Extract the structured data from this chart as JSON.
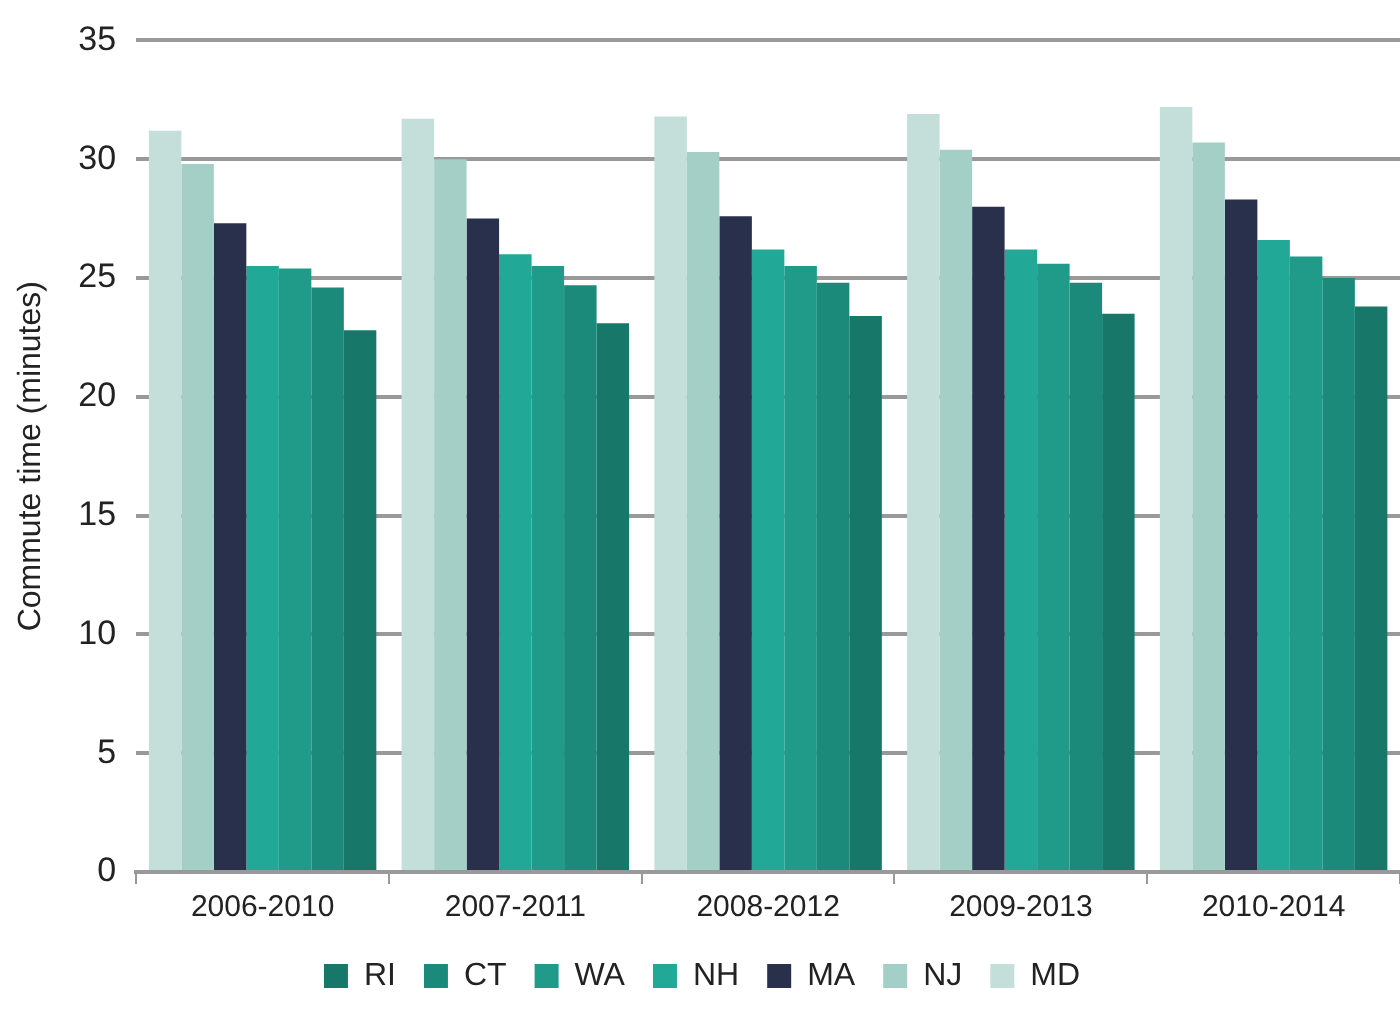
{
  "chart_data": {
    "type": "bar",
    "ylabel": "Commute time (minutes)",
    "categories": [
      "2006-2010",
      "2007-2011",
      "2008-2012",
      "2009-2013",
      "2010-2014"
    ],
    "series": [
      {
        "name": "MD",
        "color": "#c4dfda",
        "values": [
          31.2,
          31.7,
          31.8,
          31.9,
          32.2
        ]
      },
      {
        "name": "NJ",
        "color": "#a3cfc7",
        "values": [
          29.8,
          30.0,
          30.3,
          30.4,
          30.7
        ]
      },
      {
        "name": "MA",
        "color": "#28304c",
        "values": [
          27.3,
          27.5,
          27.6,
          28.0,
          28.3
        ]
      },
      {
        "name": "NH",
        "color": "#22a896",
        "values": [
          25.5,
          26.0,
          26.2,
          26.2,
          26.6
        ]
      },
      {
        "name": "WA",
        "color": "#209a89",
        "values": [
          25.4,
          25.5,
          25.5,
          25.6,
          25.9
        ]
      },
      {
        "name": "CT",
        "color": "#1b8a7a",
        "values": [
          24.6,
          24.7,
          24.8,
          24.8,
          25.0
        ]
      },
      {
        "name": "RI",
        "color": "#17786a",
        "values": [
          22.8,
          23.1,
          23.4,
          23.5,
          23.8
        ]
      }
    ],
    "ylim": [
      0,
      35
    ],
    "yticks": [
      0,
      5,
      10,
      15,
      20,
      25,
      30,
      35
    ],
    "grid": "y",
    "legend": "bottom"
  }
}
